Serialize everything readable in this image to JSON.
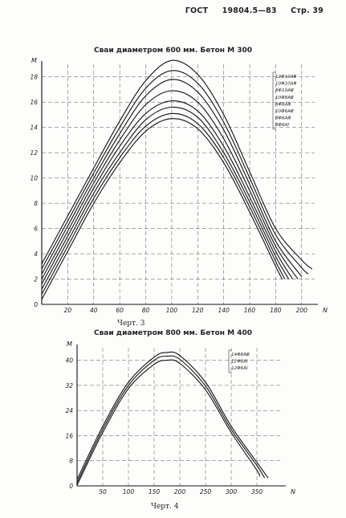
{
  "header": {
    "doc": "ГОСТ",
    "number": "19804.5—83",
    "page": "Стр. 39"
  },
  "chart_data": [
    {
      "type": "line",
      "title": "Сваи диаметром 600 мм. Бетон М 300",
      "caption": "Черт. 3",
      "ylabel": "M",
      "xlabel": "N",
      "xlim": [
        0,
        210
      ],
      "ylim": [
        0,
        19
      ],
      "xticks": [
        20,
        40,
        60,
        80,
        100,
        120,
        140,
        160,
        180,
        200
      ],
      "yticks": [
        0,
        2,
        4,
        6,
        8,
        10,
        12,
        14,
        16,
        18
      ],
      "grid": true,
      "legend_position": "top-right",
      "series": [
        {
          "name": "12Φ10AⅢ",
          "x": [
            0,
            20,
            40,
            60,
            80,
            100,
            120,
            140,
            160,
            180,
            200,
            208
          ],
          "y": [
            3.2,
            7.0,
            10.8,
            14.5,
            17.7,
            19.3,
            18.2,
            15.0,
            10.5,
            6.0,
            3.5,
            2.8
          ]
        },
        {
          "name": "10Φ10AⅢ",
          "x": [
            0,
            20,
            40,
            60,
            80,
            100,
            120,
            140,
            160,
            180,
            200,
            205
          ],
          "y": [
            2.8,
            6.6,
            10.4,
            14.0,
            17.1,
            18.5,
            17.5,
            14.4,
            10.0,
            5.5,
            2.9,
            2.4
          ]
        },
        {
          "name": "8Φ10AⅢ",
          "x": [
            0,
            20,
            40,
            60,
            80,
            100,
            120,
            140,
            160,
            180,
            200
          ],
          "y": [
            2.4,
            6.2,
            10.0,
            13.5,
            16.5,
            17.8,
            16.8,
            13.8,
            9.5,
            5.0,
            2.2
          ]
        },
        {
          "name": "10Φ8AⅢ",
          "x": [
            0,
            20,
            40,
            60,
            80,
            100,
            120,
            140,
            160,
            180,
            197
          ],
          "y": [
            2.0,
            5.8,
            9.6,
            13.0,
            15.8,
            16.9,
            16.0,
            13.1,
            9.0,
            4.6,
            2.0
          ]
        },
        {
          "name": "8Φ8AⅢ",
          "x": [
            0,
            20,
            40,
            60,
            80,
            100,
            120,
            140,
            160,
            180,
            193
          ],
          "y": [
            1.6,
            5.4,
            9.2,
            12.5,
            15.1,
            16.1,
            15.3,
            12.5,
            8.5,
            4.2,
            2.0
          ]
        },
        {
          "name": "10Φ6AⅢ",
          "x": [
            0,
            20,
            40,
            60,
            80,
            100,
            120,
            140,
            160,
            180,
            190
          ],
          "y": [
            1.2,
            5.0,
            8.8,
            12.0,
            14.6,
            15.6,
            14.8,
            12.0,
            8.1,
            3.8,
            2.0
          ]
        },
        {
          "name": "8Φ6AⅢ",
          "x": [
            0,
            20,
            40,
            60,
            80,
            100,
            120,
            140,
            160,
            180,
            187
          ],
          "y": [
            0.8,
            4.6,
            8.4,
            11.6,
            14.1,
            15.1,
            14.3,
            11.6,
            7.7,
            3.4,
            2.0
          ]
        },
        {
          "name": "8Φ6AⅠ",
          "x": [
            0,
            20,
            40,
            60,
            80,
            100,
            120,
            140,
            160,
            180,
            185
          ],
          "y": [
            0.4,
            4.2,
            8.0,
            11.2,
            13.7,
            14.7,
            13.9,
            11.2,
            7.3,
            3.0,
            2.0
          ]
        }
      ]
    },
    {
      "type": "line",
      "title": "Сваи диаметром 800 мм. Бетон М 400",
      "caption": "Черт. 4",
      "ylabel": "M",
      "xlabel": "N",
      "xlim": [
        0,
        400
      ],
      "ylim": [
        0,
        44
      ],
      "xticks": [
        50,
        100,
        150,
        200,
        250,
        300,
        350
      ],
      "yticks": [
        0,
        8,
        16,
        24,
        32,
        40
      ],
      "grid": true,
      "legend_position": "top-right",
      "series": [
        {
          "name": "14Φ8AⅢ",
          "x": [
            0,
            50,
            100,
            150,
            175,
            200,
            250,
            300,
            350,
            372
          ],
          "y": [
            2.0,
            19.0,
            33.0,
            41.0,
            42.5,
            41.5,
            33.0,
            19.0,
            7.5,
            2.5
          ]
        },
        {
          "name": "12Φ8AⅠ",
          "x": [
            0,
            50,
            100,
            150,
            175,
            200,
            250,
            300,
            350,
            365
          ],
          "y": [
            1.0,
            18.0,
            32.0,
            40.0,
            41.3,
            40.3,
            31.8,
            18.0,
            6.5,
            2.5
          ]
        },
        {
          "name": "12Φ6AⅠ",
          "x": [
            0,
            50,
            100,
            150,
            175,
            200,
            250,
            300,
            350,
            355
          ],
          "y": [
            0.2,
            17.0,
            31.0,
            38.7,
            40.0,
            39.0,
            30.6,
            17.0,
            5.0,
            3.0
          ]
        }
      ]
    }
  ]
}
